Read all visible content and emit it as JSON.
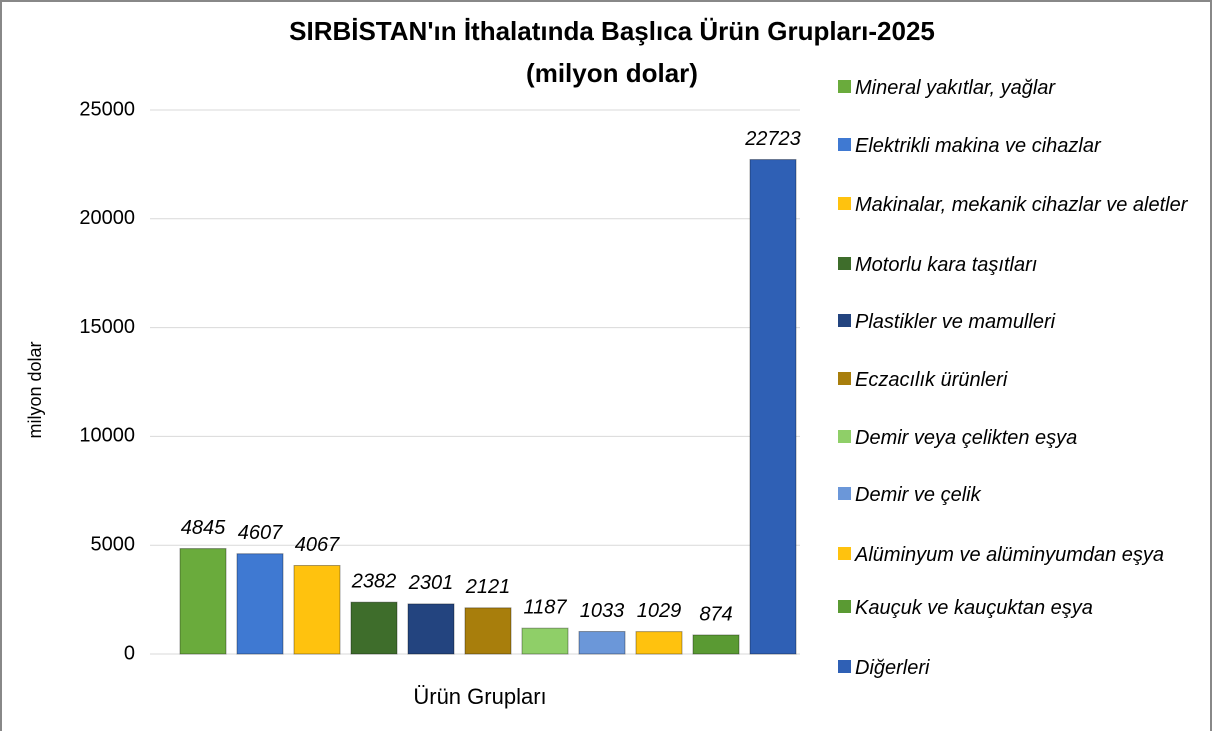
{
  "chart_data": {
    "type": "bar",
    "title": "SIRBİSTAN'ın İthalatında Başlıca Ürün Grupları-2025",
    "subtitle": "(milyon dolar)",
    "x_label": "Ürün Grupları",
    "y_label": "milyon dolar",
    "ylim": [
      0,
      25000
    ],
    "yticks": [
      0,
      5000,
      10000,
      15000,
      20000,
      25000
    ],
    "grid": true,
    "legend": "right",
    "series": [
      {
        "name": "Mineral yakıtlar, yağlar",
        "color": "#6aab3c",
        "values": [
          4845
        ]
      },
      {
        "name": "Elektrikli makina ve cihazlar",
        "color": "#3f79d2",
        "values": [
          4607
        ]
      },
      {
        "name": "Makinalar, mekanik cihazlar ve aletler",
        "color": "#ffc20e",
        "values": [
          4067
        ]
      },
      {
        "name": "Motorlu kara taşıtları",
        "color": "#3e6d2b",
        "values": [
          2382
        ]
      },
      {
        "name": "Plastikler ve mamulleri",
        "color": "#23447f",
        "values": [
          2301
        ]
      },
      {
        "name": "Eczacılık ürünleri",
        "color": "#a87e0c",
        "values": [
          2121
        ]
      },
      {
        "name": "Demir veya çelikten eşya",
        "color": "#8fcf68",
        "values": [
          1187
        ]
      },
      {
        "name": "Demir ve çelik",
        "color": "#6b97d9",
        "values": [
          1033
        ]
      },
      {
        "name": "Alüminyum ve alüminyumdan eşya",
        "color": "#ffc20e",
        "values": [
          1029
        ]
      },
      {
        "name": "Kauçuk ve kauçuktan eşya",
        "color": "#5a9a33",
        "values": [
          874
        ]
      },
      {
        "name": "Diğerleri",
        "color": "#2f60b5",
        "values": [
          22723
        ]
      }
    ]
  }
}
